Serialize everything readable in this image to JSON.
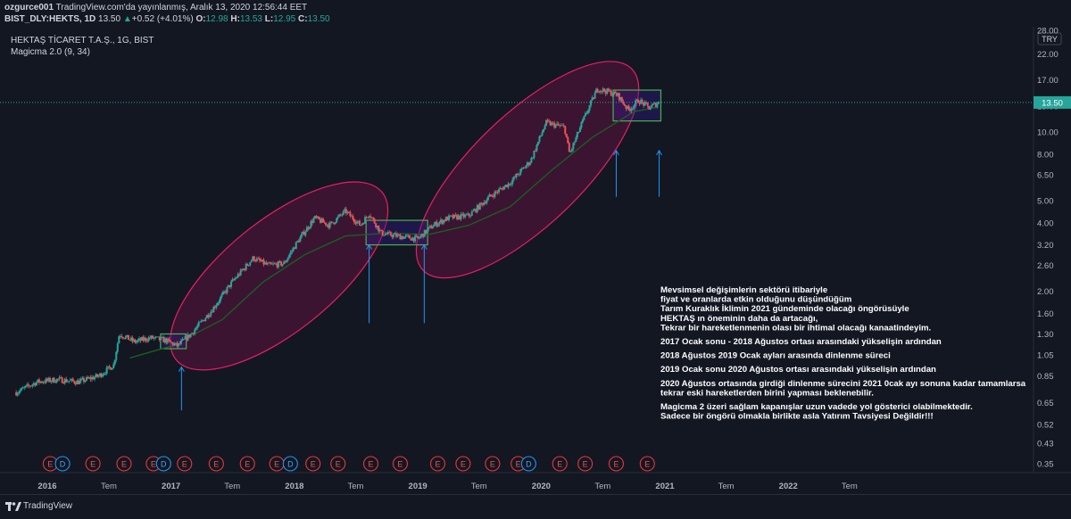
{
  "header": {
    "publisher": "ozgurce001",
    "published_text": "TradingView.com'da yayınlanmış, Aralık 13, 2020 12:56:44 EET",
    "symbol": "BIST_DLY:HEKTS, 1D",
    "last": "13.50",
    "change": "+0.52 (+4.01%)",
    "o_label": "O:",
    "o_value": "12.98",
    "h_label": "H:",
    "h_value": "13.53",
    "l_label": "L:",
    "l_value": "12.95",
    "c_label": "C:",
    "c_value": "13.50"
  },
  "chart_data": {
    "type": "candlestick",
    "title": "HEKTAŞ TİCARET T.A.Ş., 1G, BIST",
    "indicator": "Magicma 2.0 (9, 34)",
    "currency": "TRY",
    "y_scale": "log",
    "ylim": [
      0.3,
      28
    ],
    "y_ticks": [
      "28.00",
      "22.00",
      "17.00",
      "13.00",
      "10.00",
      "8.00",
      "6.50",
      "5.00",
      "4.00",
      "3.20",
      "2.60",
      "2.00",
      "1.60",
      "1.30",
      "1.05",
      "0.85",
      "0.65",
      "0.52",
      "0.43",
      "0.35"
    ],
    "x_ticks": [
      "2016",
      "Tem",
      "2017",
      "Tem",
      "2018",
      "Tem",
      "2019",
      "Tem",
      "2020",
      "Tem",
      "2021",
      "Tem",
      "2022",
      "Tem"
    ],
    "last_price": "13.50",
    "price_points": [
      [
        "2015-10-01",
        0.72
      ],
      [
        "2015-12-01",
        0.8
      ],
      [
        "2016-02-01",
        0.82
      ],
      [
        "2016-04-01",
        0.8
      ],
      [
        "2016-06-01",
        0.85
      ],
      [
        "2016-07-15",
        0.95
      ],
      [
        "2016-08-01",
        1.3
      ],
      [
        "2016-09-15",
        1.2
      ],
      [
        "2016-11-01",
        1.25
      ],
      [
        "2016-12-15",
        1.22
      ],
      [
        "2017-01-20",
        1.15
      ],
      [
        "2017-03-01",
        1.3
      ],
      [
        "2017-05-01",
        1.65
      ],
      [
        "2017-07-01",
        2.2
      ],
      [
        "2017-09-01",
        2.8
      ],
      [
        "2017-10-15",
        2.6
      ],
      [
        "2017-12-01",
        2.65
      ],
      [
        "2018-01-10",
        3.3
      ],
      [
        "2018-03-01",
        4.2
      ],
      [
        "2018-04-15",
        3.9
      ],
      [
        "2018-06-01",
        4.5
      ],
      [
        "2018-07-15",
        3.9
      ],
      [
        "2018-08-10",
        4.4
      ],
      [
        "2018-09-15",
        3.6
      ],
      [
        "2018-11-01",
        3.5
      ],
      [
        "2019-01-01",
        3.4
      ],
      [
        "2019-02-15",
        3.9
      ],
      [
        "2019-04-01",
        4.2
      ],
      [
        "2019-06-01",
        4.3
      ],
      [
        "2019-08-01",
        5.2
      ],
      [
        "2019-10-01",
        6.0
      ],
      [
        "2019-12-01",
        7.5
      ],
      [
        "2020-01-15",
        11.0
      ],
      [
        "2020-03-10",
        10.5
      ],
      [
        "2020-03-25",
        8.0
      ],
      [
        "2020-05-01",
        11.0
      ],
      [
        "2020-06-15",
        15.5
      ],
      [
        "2020-07-20",
        15.0
      ],
      [
        "2020-08-15",
        14.5
      ],
      [
        "2020-09-15",
        12.5
      ],
      [
        "2020-10-15",
        13.8
      ],
      [
        "2020-11-15",
        12.8
      ],
      [
        "2020-12-13",
        13.5
      ]
    ],
    "ma_points": [
      [
        "2016-09-01",
        1.02
      ],
      [
        "2017-01-01",
        1.15
      ],
      [
        "2017-06-01",
        1.5
      ],
      [
        "2017-10-01",
        2.2
      ],
      [
        "2018-02-01",
        2.9
      ],
      [
        "2018-06-01",
        3.5
      ],
      [
        "2018-10-01",
        3.6
      ],
      [
        "2019-02-01",
        3.55
      ],
      [
        "2019-06-01",
        3.9
      ],
      [
        "2019-10-01",
        4.7
      ],
      [
        "2020-02-01",
        6.8
      ],
      [
        "2020-06-01",
        9.5
      ],
      [
        "2020-10-01",
        12.3
      ],
      [
        "2020-12-13",
        12.9
      ]
    ],
    "ellipses": [
      {
        "from": "2017-02-01",
        "to": "2018-09-01",
        "low": 1.05,
        "high": 5.2
      },
      {
        "from": "2019-02-01",
        "to": "2020-09-10",
        "low": 2.6,
        "high": 18.0
      }
    ],
    "boxes": [
      {
        "from": "2016-12-01",
        "to": "2017-02-15",
        "low": 1.12,
        "high": 1.3
      },
      {
        "from": "2018-08-01",
        "to": "2019-01-30",
        "low": 3.2,
        "high": 4.1
      },
      {
        "from": "2020-08-01",
        "to": "2020-12-20",
        "low": 11.2,
        "high": 15.3
      }
    ],
    "arrows": [
      {
        "date": "2017-02-01",
        "from": 0.6,
        "to": 0.93
      },
      {
        "date": "2018-08-10",
        "from": 1.45,
        "to": 3.2
      },
      {
        "date": "2019-01-20",
        "from": 1.45,
        "to": 3.2
      },
      {
        "date": "2020-08-10",
        "from": 5.2,
        "to": 8.3
      },
      {
        "date": "2020-12-15",
        "from": 5.2,
        "to": 8.3
      }
    ],
    "events": [
      {
        "date": "2016-01-10",
        "label": "E"
      },
      {
        "date": "2016-02-15",
        "label": "D"
      },
      {
        "date": "2016-05-15",
        "label": "E"
      },
      {
        "date": "2016-08-15",
        "label": "E"
      },
      {
        "date": "2016-11-10",
        "label": "E"
      },
      {
        "date": "2017-02-10",
        "label": "E"
      },
      {
        "date": "2016-12-10",
        "label": "D"
      },
      {
        "date": "2017-05-15",
        "label": "E"
      },
      {
        "date": "2017-08-15",
        "label": "E"
      },
      {
        "date": "2017-11-10",
        "label": "E"
      },
      {
        "date": "2017-12-20",
        "label": "D"
      },
      {
        "date": "2018-02-25",
        "label": "E"
      },
      {
        "date": "2018-05-10",
        "label": "E"
      },
      {
        "date": "2018-08-15",
        "label": "E"
      },
      {
        "date": "2018-11-10",
        "label": "E"
      },
      {
        "date": "2019-03-01",
        "label": "E"
      },
      {
        "date": "2019-05-15",
        "label": "E"
      },
      {
        "date": "2019-08-10",
        "label": "E"
      },
      {
        "date": "2019-10-25",
        "label": "E"
      },
      {
        "date": "2019-11-25",
        "label": "D"
      },
      {
        "date": "2020-02-25",
        "label": "E"
      },
      {
        "date": "2020-05-10",
        "label": "E"
      },
      {
        "date": "2020-08-10",
        "label": "E"
      },
      {
        "date": "2020-11-10",
        "label": "E"
      }
    ],
    "annotation_lines": [
      "Mevsimsel değişimlerin sektörü itibariyle",
      "fiyat ve oranlarda etkin olduğunu düşündüğüm",
      "Tarım Kuraklık İklimin 2021 gündeminde olacağı öngörüsüyle",
      "HEKTAŞ ın öneminin daha da artacağı,",
      "Tekrar bir hareketlenmenin olası bir ihtimal olacağı kanaatindeyim.",
      "",
      "2017 Ocak sonu - 2018 Ağustos ortası arasındaki yükselişin ardından",
      "",
      "2018 Ağustos 2019 Ocak ayları arasında dinlenme süreci",
      "",
      "2019 Ocak sonu 2020 Ağustos ortası arasındaki yükselişin ardından",
      "",
      "2020 Ağustos ortasında girdiği dinlenme sürecini 2021 0cak ayı sonuna kadar tamamlarsa",
      "tekrar eski hareketlerden birini yapması beklenebilir.",
      "",
      "Magicma 2 üzeri sağlam kapanışlar uzun vadede yol gösterici olabilmektedir.",
      "Sadece bir öngörü olmakla birlikte asla Yatırım Tavsiyesi Değildir!!!"
    ],
    "colors": {
      "background": "#131722",
      "up": "#26a69a",
      "down": "#ef5350",
      "ma": "#1b5e20",
      "ellipse_stroke": "#e91e63",
      "ellipse_fill": "#880e4f",
      "box_stroke": "#4caf50",
      "arrow": "#2196f3",
      "last_price": "#26a69a"
    }
  },
  "footer": {
    "brand": "TradingView"
  }
}
